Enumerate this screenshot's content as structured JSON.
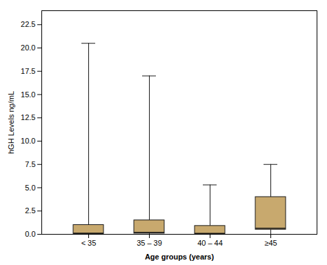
{
  "chart_data": {
    "type": "box",
    "xlabel": "Age groups (years)",
    "ylabel": "hGH Levels ng/mL",
    "categories": [
      "< 35",
      "35 – 39",
      "40 – 44",
      "≥45"
    ],
    "stats": [
      {
        "whislo": 0.0,
        "q1": 0.05,
        "med": 0.12,
        "q3": 1.0,
        "whishi": 20.5
      },
      {
        "whislo": 0.0,
        "q1": 0.08,
        "med": 0.2,
        "q3": 1.5,
        "whishi": 17.0
      },
      {
        "whislo": 0.0,
        "q1": 0.04,
        "med": 0.1,
        "q3": 0.9,
        "whishi": 5.3
      },
      {
        "whislo": 0.0,
        "q1": 0.5,
        "med": 0.65,
        "q3": 4.0,
        "whishi": 7.5
      }
    ],
    "color": "#C8A96E",
    "ylim": [
      0,
      24
    ],
    "yticks": [
      {
        "value": 0,
        "label": "0.0"
      },
      2.5,
      {
        "value": 5,
        "label": "5.0"
      },
      7.5,
      {
        "value": 10,
        "label": "10.0"
      },
      12.5,
      {
        "value": 15,
        "label": "15.0"
      },
      17.5,
      {
        "value": 20,
        "label": "20.0"
      },
      22.5
    ],
    "grid": false
  }
}
